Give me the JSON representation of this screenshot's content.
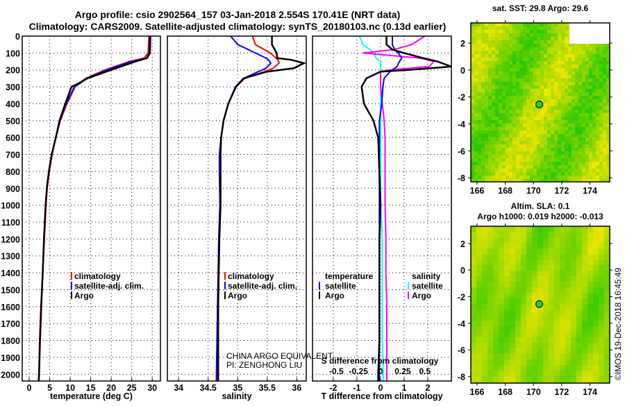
{
  "title_line1": "Argo profile: csio 2902564_157 03-Jan-2018 2.554S 170.41E (NRT data)",
  "title_line2": "Climatology: CARS2009. Satellite-adjusted climatology: synTS_20180103.nc (0.13d earlier)",
  "annotation_line1": "CHINA ARGO EQUIVALENT",
  "annotation_line2": "PI: ZENGHONG LIU",
  "copyright": "©IMOS 19-Dec-2018 16:45:49",
  "colors": {
    "climatology": "#ff0000",
    "satellite": "#0000ff",
    "argo": "#000000",
    "sal_satellite": "#00ffff",
    "sal_argo": "#ff00ff"
  },
  "chart_data": [
    {
      "type": "line",
      "xlabel": "temperature (deg C)",
      "ylabel": "depth",
      "xlim": [
        -1.7,
        32
      ],
      "ylim": [
        0,
        2040
      ],
      "xticks": [
        "0",
        "5",
        "10",
        "15",
        "20",
        "25",
        "30"
      ],
      "yticks": [
        "0",
        "100",
        "200",
        "300",
        "400",
        "500",
        "600",
        "700",
        "800",
        "900",
        "1000",
        "1100",
        "1200",
        "1300",
        "1400",
        "1500",
        "1600",
        "1700",
        "1800",
        "1900",
        "2000"
      ],
      "grid": true,
      "legend": [
        "climatology",
        "satellite-adj. clim.",
        "Argo"
      ],
      "legend_placement": "bottom-right",
      "depth": [
        0,
        100,
        130,
        150,
        200,
        250,
        280,
        300,
        400,
        500,
        600,
        700,
        800,
        900,
        1000,
        1200,
        1400,
        1600,
        1800,
        2000,
        2040
      ],
      "series": [
        {
          "name": "climatology",
          "values": [
            29.2,
            29.0,
            28.0,
            24.5,
            18.5,
            13.8,
            12.2,
            11.2,
            9.2,
            7.6,
            6.5,
            5.6,
            4.9,
            4.4,
            4.1,
            3.7,
            3.3,
            3.0,
            2.7,
            2.45,
            2.4
          ]
        },
        {
          "name": "satellite-adj. clim.",
          "values": [
            29.6,
            29.5,
            28.8,
            25.0,
            19.0,
            14.0,
            12.4,
            11.0,
            9.0,
            7.5,
            6.5,
            5.5,
            4.8,
            4.3,
            4.0,
            3.6,
            3.3,
            2.9,
            2.6,
            2.4,
            2.3
          ]
        },
        {
          "name": "Argo",
          "values": [
            29.5,
            29.3,
            28.7,
            26.0,
            20.0,
            14.2,
            12.0,
            10.3,
            8.8,
            7.4,
            6.5,
            5.5,
            4.8,
            4.3,
            4.0,
            3.6,
            3.3,
            2.9,
            2.6,
            2.4,
            2.3
          ]
        }
      ]
    },
    {
      "type": "line",
      "xlabel": "salinity",
      "xlim": [
        33.81,
        36.16
      ],
      "ylim": [
        0,
        2040
      ],
      "xticks": [
        "34",
        "34.5",
        "35",
        "35.5",
        "36"
      ],
      "grid": true,
      "legend": [
        "climatology",
        "satellite-adj. clim.",
        "Argo"
      ],
      "legend_placement": "bottom-right",
      "depth": [
        0,
        50,
        100,
        130,
        140,
        160,
        190,
        210,
        250,
        300,
        400,
        500,
        600,
        700,
        800,
        1000,
        1200,
        1400,
        1600,
        1800,
        2000,
        2040
      ],
      "series": [
        {
          "name": "climatology",
          "values": [
            35.25,
            35.3,
            35.55,
            35.65,
            35.68,
            35.7,
            35.6,
            35.45,
            35.12,
            34.97,
            34.84,
            34.76,
            34.72,
            34.7,
            34.7,
            34.7,
            34.68,
            34.67,
            34.66,
            34.65,
            34.65,
            34.65
          ]
        },
        {
          "name": "satellite-adj. clim.",
          "values": [
            34.88,
            35.0,
            35.3,
            35.48,
            35.52,
            35.56,
            35.48,
            35.35,
            35.1,
            34.96,
            34.84,
            34.76,
            34.72,
            34.69,
            34.69,
            34.7,
            34.68,
            34.67,
            34.66,
            34.65,
            34.64,
            34.64
          ]
        },
        {
          "name": "Argo",
          "values": [
            35.58,
            35.58,
            35.66,
            35.67,
            35.9,
            36.12,
            35.95,
            35.5,
            35.1,
            34.97,
            34.84,
            34.76,
            34.72,
            34.71,
            34.71,
            34.71,
            34.69,
            34.68,
            34.67,
            34.67,
            34.67,
            34.67
          ]
        }
      ]
    },
    {
      "type": "line",
      "xlabel": "T difference from climatology",
      "x2label": "S difference from climatology",
      "xlim": [
        -2.88,
        3.0
      ],
      "x2lim": [
        -0.77,
        0.8
      ],
      "ylim": [
        0,
        2040
      ],
      "xticks": [
        "-2",
        "-1",
        "0",
        "1",
        "2"
      ],
      "x2ticks": [
        "-0.5",
        "-0.25",
        "0",
        "0.25",
        "0.5"
      ],
      "grid": true,
      "legend_temperature": {
        "title": "temperature",
        "items": [
          "satellite",
          "Argo"
        ]
      },
      "legend_salinity": {
        "title": "salinity",
        "items": [
          "satellite",
          "Argo"
        ]
      },
      "depth": [
        0,
        50,
        80,
        100,
        130,
        150,
        180,
        200,
        210,
        250,
        300,
        400,
        500,
        600,
        800,
        1000,
        1200,
        1400,
        1600,
        1800,
        2000,
        2040
      ],
      "series": [
        {
          "name": "temperature satellite",
          "axis": "T",
          "values": [
            0.5,
            0.5,
            0.6,
            0.75,
            0.9,
            0.8,
            0.7,
            0.5,
            0.4,
            0.15,
            0.1,
            0.05,
            -0.05,
            -0.05,
            -0.05,
            -0.05,
            -0.05,
            -0.05,
            -0.05,
            -0.05,
            -0.05,
            -0.05
          ]
        },
        {
          "name": "temperature Argo",
          "axis": "T",
          "values": [
            0.25,
            0.25,
            0.5,
            1.0,
            1.8,
            2.4,
            3.0,
            1.2,
            0.0,
            -0.6,
            -0.8,
            -0.7,
            -0.3,
            -0.1,
            -0.05,
            0.0,
            -0.05,
            -0.05,
            -0.05,
            -0.05,
            -0.1,
            -0.1
          ]
        },
        {
          "name": "salinity satellite",
          "axis": "S",
          "values": [
            -0.24,
            -0.2,
            -0.12,
            -0.08,
            -0.05,
            0.0,
            0.0,
            0.0,
            0.0,
            0.0,
            0.0,
            0.0,
            0.0,
            0.0,
            0.0,
            0.0,
            0.02,
            0.02,
            0.02,
            0.02,
            0.03,
            0.03
          ]
        },
        {
          "name": "salinity Argo",
          "axis": "S",
          "values": [
            0.5,
            0.35,
            0.15,
            -0.2,
            0.45,
            0.6,
            0.55,
            0.1,
            0.0,
            0.0,
            0.0,
            0.02,
            0.04,
            0.05,
            0.05,
            0.05,
            0.06,
            0.06,
            0.07,
            0.07,
            0.07,
            0.07
          ]
        }
      ]
    },
    {
      "type": "heatmap",
      "title": "sat. SST: 29.8 Argo: 29.6",
      "xlim": [
        165.56,
        175.4
      ],
      "ylim": [
        -8.3,
        3.5
      ],
      "xticks": [
        "166",
        "168",
        "170",
        "172",
        "174"
      ],
      "yticks": [
        "2",
        "0",
        "-2",
        "-4",
        "-6",
        "-8"
      ],
      "marker": {
        "lon": 170.41,
        "lat": -2.554
      }
    },
    {
      "type": "heatmap",
      "title": "Altim. SLA: 0.1",
      "subtitle": "Argo h1000: 0.019 h2000: -0.013",
      "xlim": [
        165.56,
        175.4
      ],
      "ylim": [
        -8.5,
        3.3
      ],
      "xticks": [
        "166",
        "168",
        "170",
        "172",
        "174"
      ],
      "yticks": [
        "2",
        "0",
        "-2",
        "-4",
        "-6",
        "-8"
      ],
      "marker": {
        "lon": 170.41,
        "lat": -2.554
      }
    }
  ]
}
